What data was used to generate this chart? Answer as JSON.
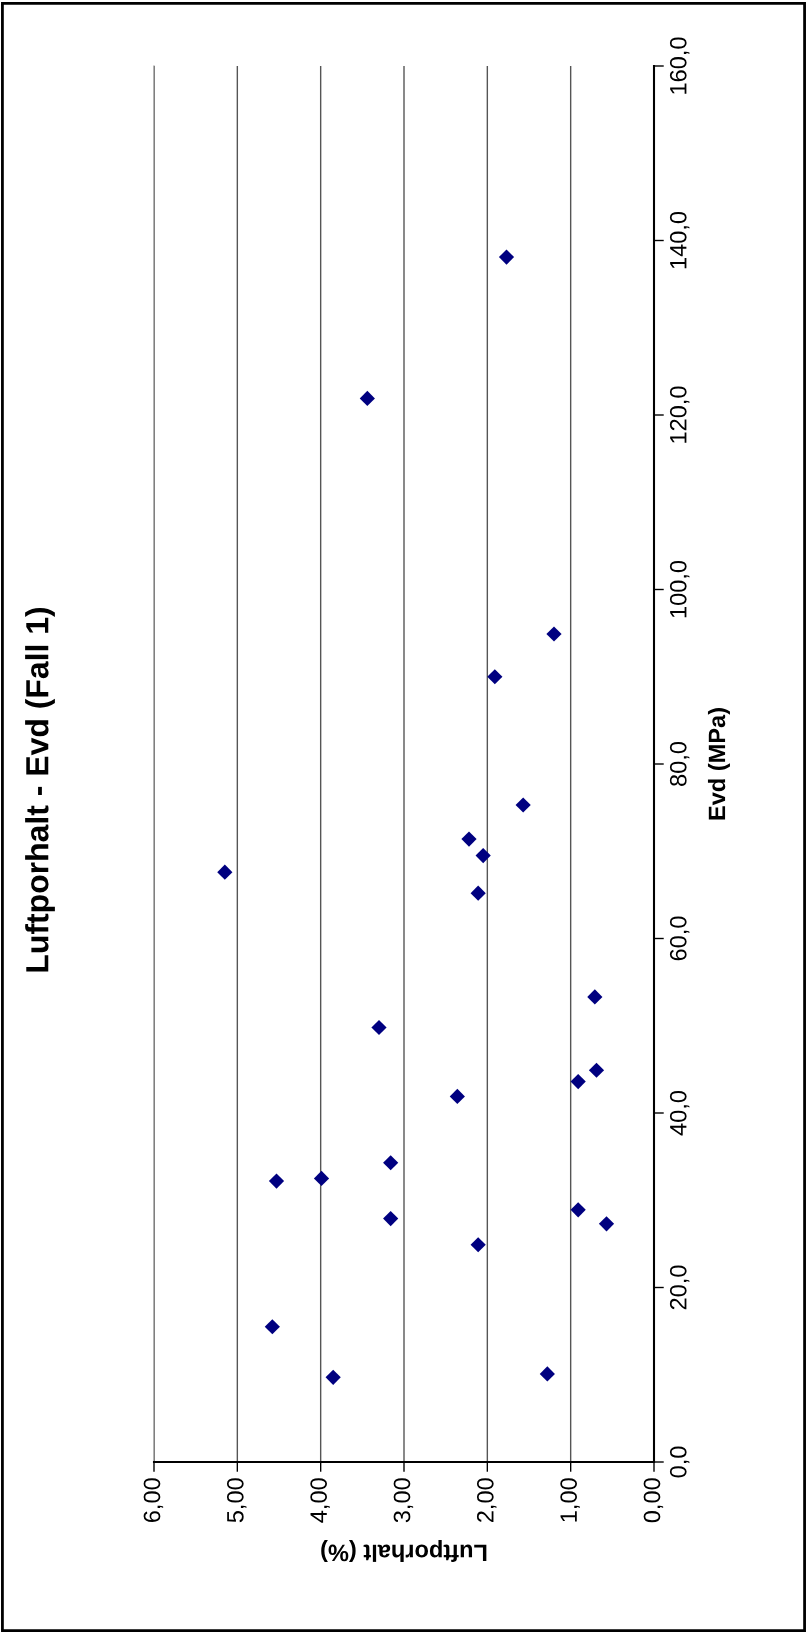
{
  "chart_data": {
    "type": "scatter",
    "title": "Luftporhalt - Evd (Fall 1)",
    "xlabel": "Luftporhalt (%)",
    "ylabel": "Evd (MPa)",
    "x": [
      1.57,
      2.22,
      2.05,
      5.15,
      2.11,
      0.71,
      3.3,
      0.69,
      0.91,
      2.36,
      3.16,
      4.53,
      3.99,
      3.16,
      0.91,
      0.57,
      2.11,
      4.58,
      3.85,
      1.28,
      1.77,
      3.44,
      1.2,
      1.91
    ],
    "values": [
      75.3,
      71.4,
      69.5,
      67.6,
      65.2,
      53.3,
      49.8,
      44.9,
      43.6,
      41.9,
      34.3,
      32.2,
      32.5,
      27.9,
      28.9,
      27.3,
      24.9,
      15.5,
      9.7,
      10.1,
      138.1,
      121.9,
      94.9,
      90.0
    ],
    "color": "#000080",
    "marker": "diamond",
    "xlim": [
      6,
      0
    ],
    "xticks": [
      {
        "value": 0,
        "label": "0,00"
      },
      {
        "value": 1,
        "label": "1,00"
      },
      {
        "value": 2,
        "label": "2,00"
      },
      {
        "value": 3,
        "label": "3,00"
      },
      {
        "value": 4,
        "label": "4,00"
      },
      {
        "value": 5,
        "label": "5,00"
      },
      {
        "value": 6,
        "label": "6,00"
      }
    ],
    "ylim": [
      0,
      160
    ],
    "yticks": [
      {
        "value": 0,
        "label": "0,0"
      },
      {
        "value": 20,
        "label": "20,0"
      },
      {
        "value": 40,
        "label": "40,0"
      },
      {
        "value": 60,
        "label": "60,0"
      },
      {
        "value": 80,
        "label": "80,0"
      },
      {
        "value": 100,
        "label": "100,0"
      },
      {
        "value": 120,
        "label": "120,0"
      },
      {
        "value": 140,
        "label": "140,0"
      },
      {
        "value": 160,
        "label": "160,0"
      }
    ],
    "grid": "x",
    "legend": false
  }
}
